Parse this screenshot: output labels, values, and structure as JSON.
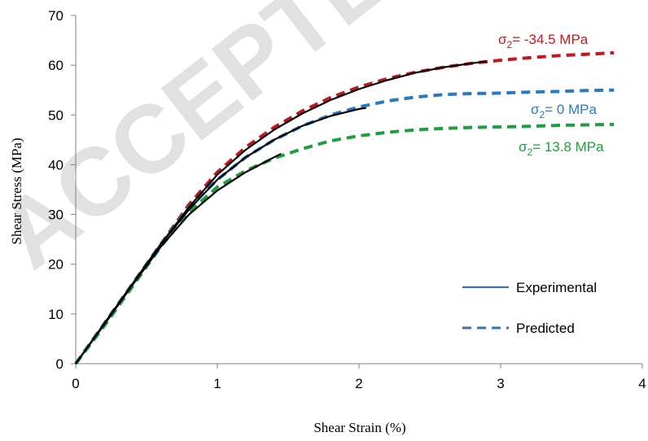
{
  "watermark": "ACCEPTED",
  "chart_data": {
    "type": "line",
    "title": "",
    "xlabel": "Shear Strain  (%)",
    "ylabel": "Shear Stress  (MPa)",
    "xlim": [
      0,
      4
    ],
    "ylim": [
      0,
      70
    ],
    "xticks": [
      0,
      1,
      2,
      3,
      4
    ],
    "yticks": [
      0,
      10,
      20,
      30,
      40,
      50,
      60,
      70
    ],
    "grid": false,
    "legend": {
      "position": "bottom-right",
      "entries": [
        {
          "label": "Experimental",
          "style": "solid",
          "color": "#3a6fb8"
        },
        {
          "label": "Predicted",
          "style": "dashed",
          "color": "#3a6fb8"
        }
      ]
    },
    "series": [
      {
        "name": "σ₂= -34.5 MPa",
        "kind": "predicted",
        "color": "#c0181f",
        "label_parts": {
          "sigma": "σ",
          "sub": "2",
          "rest": "= -34.5 MPa"
        },
        "x": [
          0,
          0.2,
          0.4,
          0.6,
          0.8,
          1.0,
          1.2,
          1.4,
          1.6,
          1.8,
          2.0,
          2.2,
          2.4,
          2.6,
          2.8,
          3.0,
          3.2,
          3.4,
          3.6,
          3.8
        ],
        "y": [
          0,
          8,
          16,
          24,
          32,
          38.5,
          43.5,
          47.5,
          50.8,
          53.5,
          55.6,
          57.3,
          58.6,
          59.6,
          60.4,
          61.0,
          61.5,
          61.9,
          62.2,
          62.5
        ]
      },
      {
        "name": "σ₂= 0 MPa",
        "kind": "predicted",
        "color": "#2a7ac0",
        "label_parts": {
          "sigma": "σ",
          "sub": "2",
          "rest": "= 0 MPa"
        },
        "x": [
          0,
          0.2,
          0.4,
          0.6,
          0.8,
          1.0,
          1.2,
          1.4,
          1.6,
          1.8,
          2.0,
          2.2,
          2.4,
          2.6,
          2.8,
          3.0,
          3.2,
          3.4,
          3.6,
          3.8
        ],
        "y": [
          0,
          8,
          16,
          24,
          31.5,
          37,
          41.5,
          45,
          47.8,
          50,
          51.6,
          52.8,
          53.6,
          54.1,
          54.3,
          54.4,
          54.6,
          54.7,
          54.9,
          55.0
        ]
      },
      {
        "name": "σ₂= 13.8 MPa",
        "kind": "predicted",
        "color": "#1e9e3e",
        "label_parts": {
          "sigma": "σ",
          "sub": "2",
          "rest": "= 13.8 MPa"
        },
        "x": [
          0,
          0.2,
          0.4,
          0.6,
          0.8,
          1.0,
          1.2,
          1.4,
          1.6,
          1.8,
          2.0,
          2.2,
          2.4,
          2.6,
          2.8,
          3.0,
          3.2,
          3.4,
          3.6,
          3.8
        ],
        "y": [
          0,
          7.5,
          15.5,
          23.5,
          30.5,
          35.5,
          38.8,
          41.3,
          43.2,
          44.8,
          45.8,
          46.5,
          47.0,
          47.3,
          47.5,
          47.6,
          47.7,
          47.9,
          48.0,
          48.1
        ]
      },
      {
        "name": "Experimental (σ₂= -34.5 MPa)",
        "kind": "experimental",
        "color": "#000000",
        "x": [
          0,
          0.2,
          0.4,
          0.6,
          0.8,
          1.0,
          1.2,
          1.4,
          1.6,
          1.8,
          2.0,
          2.2,
          2.4,
          2.6,
          2.8,
          2.9
        ],
        "y": [
          0,
          8,
          16,
          24,
          31.5,
          38,
          43,
          47,
          50.3,
          53,
          55.2,
          57,
          58.5,
          59.6,
          60.4,
          60.8
        ]
      },
      {
        "name": "Experimental (σ₂= 0 MPa)",
        "kind": "experimental",
        "color": "#000000",
        "x": [
          0,
          0.2,
          0.4,
          0.6,
          0.8,
          1.0,
          1.2,
          1.4,
          1.6,
          1.8,
          2.0,
          2.05
        ],
        "y": [
          0,
          8,
          16,
          24,
          31,
          37,
          41.5,
          45,
          47.8,
          49.8,
          51.2,
          51.4
        ]
      },
      {
        "name": "Experimental (σ₂= 13.8 MPa)",
        "kind": "experimental",
        "color": "#000000",
        "x": [
          0,
          0.2,
          0.4,
          0.6,
          0.8,
          1.0,
          1.2,
          1.4,
          1.45
        ],
        "y": [
          0,
          7.8,
          15.8,
          23.5,
          30,
          34.8,
          38.5,
          41.5,
          42.2
        ]
      }
    ]
  }
}
